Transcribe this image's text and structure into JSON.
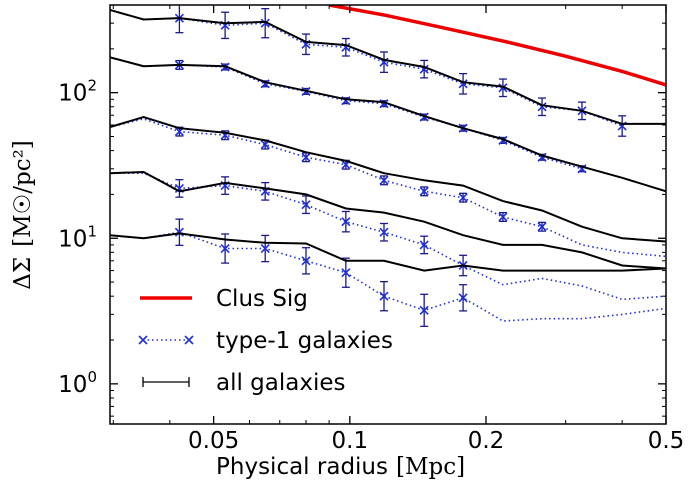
{
  "chart_data": {
    "type": "line",
    "xlabel": "Physical radius",
    "xlabel_unit": "[Mpc]",
    "ylabel": "ΔΣ",
    "ylabel_unit": "[M☉/pc²]",
    "x_scale": "log",
    "y_scale": "log",
    "xlim": [
      0.0295,
      0.5
    ],
    "ylim": [
      0.53,
      400
    ],
    "x_ticks": [
      {
        "value": 0.05,
        "label": "0.05"
      },
      {
        "value": 0.1,
        "label": "0.1"
      },
      {
        "value": 0.2,
        "label": "0.2"
      },
      {
        "value": 0.5,
        "label": "0.5"
      }
    ],
    "y_ticks": [
      {
        "value": 1,
        "base": "10",
        "exp": "0"
      },
      {
        "value": 10,
        "base": "10",
        "exp": "1"
      },
      {
        "value": 100,
        "base": "10",
        "exp": "2"
      }
    ],
    "grid": false,
    "legend_position": "bottom-left",
    "legend": [
      {
        "label": "Clus Sig",
        "style": "red-line"
      },
      {
        "label": "type-1 galaxies",
        "style": "blue-dotted-x"
      },
      {
        "label": "all galaxies",
        "style": "black-errorbar"
      }
    ],
    "clus_sig": {
      "color": "#ee0000",
      "x": [
        0.09,
        0.12,
        0.16,
        0.22,
        0.3,
        0.4,
        0.5
      ],
      "y": [
        400,
        340,
        280,
        225,
        178,
        140,
        113
      ]
    },
    "groups": [
      {
        "all": {
          "x": [
            0.0295,
            0.035,
            0.042,
            0.053,
            0.065,
            0.08,
            0.098,
            0.119,
            0.146,
            0.178,
            0.218,
            0.266,
            0.326,
            0.4,
            0.5
          ],
          "y": [
            370,
            318,
            325,
            300,
            306,
            223,
            212,
            168,
            150,
            118,
            110,
            82,
            75,
            61,
            61
          ]
        },
        "type1": {
          "x": [
            0.042,
            0.053,
            0.065,
            0.08,
            0.098,
            0.119,
            0.146,
            0.178,
            0.218,
            0.266,
            0.326,
            0.4
          ],
          "y": [
            325,
            290,
            300,
            215,
            205,
            162,
            145,
            115,
            108,
            80,
            75,
            59
          ],
          "err": [
            0.1,
            0.09,
            0.1,
            0.07,
            0.06,
            0.07,
            0.06,
            0.07,
            0.06,
            0.06,
            0.06,
            0.07
          ]
        }
      },
      {
        "all": {
          "x": [
            0.0295,
            0.035,
            0.042,
            0.053,
            0.065,
            0.08,
            0.098,
            0.119,
            0.146,
            0.178,
            0.218,
            0.266,
            0.326,
            0.4,
            0.5
          ],
          "y": [
            175,
            152,
            155,
            152,
            118,
            103,
            90,
            86,
            69,
            57,
            48,
            37,
            31,
            26,
            21
          ]
        },
        "type1": {
          "x": [
            0.042,
            0.053,
            0.065,
            0.08,
            0.098,
            0.119,
            0.146,
            0.178,
            0.218,
            0.266,
            0.326
          ],
          "y": [
            155,
            150,
            115,
            102,
            88,
            84,
            68,
            57,
            47,
            36,
            30
          ],
          "err": [
            0.03,
            0.02,
            0.02,
            0.02,
            0.02,
            0.02,
            0.02,
            0.02,
            0.02,
            0.02,
            0.02
          ]
        }
      },
      {
        "all": {
          "x": [
            0.0295,
            0.035,
            0.042,
            0.053,
            0.065,
            0.08,
            0.098,
            0.119,
            0.146,
            0.178,
            0.218,
            0.266,
            0.326,
            0.4,
            0.5
          ],
          "y": [
            58,
            68,
            57,
            53,
            47,
            39,
            34,
            28,
            25,
            23,
            18,
            15.5,
            12,
            10,
            9.5
          ]
        },
        "type1": {
          "x": [
            0.0295,
            0.035,
            0.042,
            0.053,
            0.065,
            0.08,
            0.098,
            0.119,
            0.146,
            0.178,
            0.218,
            0.266,
            0.326,
            0.4,
            0.5
          ],
          "y": [
            58,
            66,
            54,
            51,
            44,
            36,
            32,
            25,
            21,
            19,
            14,
            12,
            9,
            8,
            7.5
          ],
          "err": [
            0,
            0,
            0.03,
            0.03,
            0.03,
            0.03,
            0.03,
            0.03,
            0.03,
            0.03,
            0.03,
            0.03,
            0,
            0,
            0
          ]
        }
      },
      {
        "all": {
          "x": [
            0.0295,
            0.035,
            0.042,
            0.053,
            0.065,
            0.08,
            0.098,
            0.119,
            0.146,
            0.178,
            0.218,
            0.266,
            0.326,
            0.4,
            0.5
          ],
          "y": [
            28,
            28.5,
            21,
            24,
            22,
            20,
            16,
            15,
            13,
            10.5,
            9,
            9,
            8,
            6.5,
            6.2
          ]
        },
        "type1": {
          "x": [
            0.0295,
            0.035,
            0.042,
            0.053,
            0.065,
            0.08,
            0.098,
            0.119,
            0.146,
            0.178,
            0.218,
            0.266,
            0.326,
            0.4,
            0.5
          ],
          "y": [
            28,
            28,
            22,
            23,
            21,
            17,
            13,
            11,
            9,
            6.5,
            4.8,
            5.3,
            4.7,
            3.8,
            4
          ],
          "err": [
            0,
            0,
            0.06,
            0.06,
            0.06,
            0.06,
            0.07,
            0.06,
            0.06,
            0.07,
            0,
            0,
            0,
            0,
            0
          ]
        }
      },
      {
        "all": {
          "x": [
            0.0295,
            0.035,
            0.042,
            0.053,
            0.065,
            0.08,
            0.098,
            0.119,
            0.146,
            0.178,
            0.218,
            0.266,
            0.326,
            0.4,
            0.5
          ],
          "y": [
            10.5,
            10,
            10.8,
            9.8,
            9.3,
            9.2,
            7,
            7,
            6,
            6.5,
            6,
            6,
            6,
            6,
            6.2
          ]
        },
        "type1": {
          "x": [
            0.0295,
            0.035,
            0.042,
            0.053,
            0.065,
            0.08,
            0.098,
            0.119,
            0.146,
            0.178,
            0.218,
            0.266,
            0.326,
            0.4,
            0.5
          ],
          "y": [
            10.5,
            10,
            11,
            8.5,
            8.5,
            7,
            5.8,
            4,
            3.2,
            3.9,
            2.7,
            2.8,
            2.8,
            3,
            3.3
          ],
          "err": [
            0,
            0,
            0.09,
            0.1,
            0.09,
            0.09,
            0.1,
            0.1,
            0.11,
            0.09,
            0,
            0,
            0,
            0,
            0
          ]
        }
      }
    ]
  }
}
